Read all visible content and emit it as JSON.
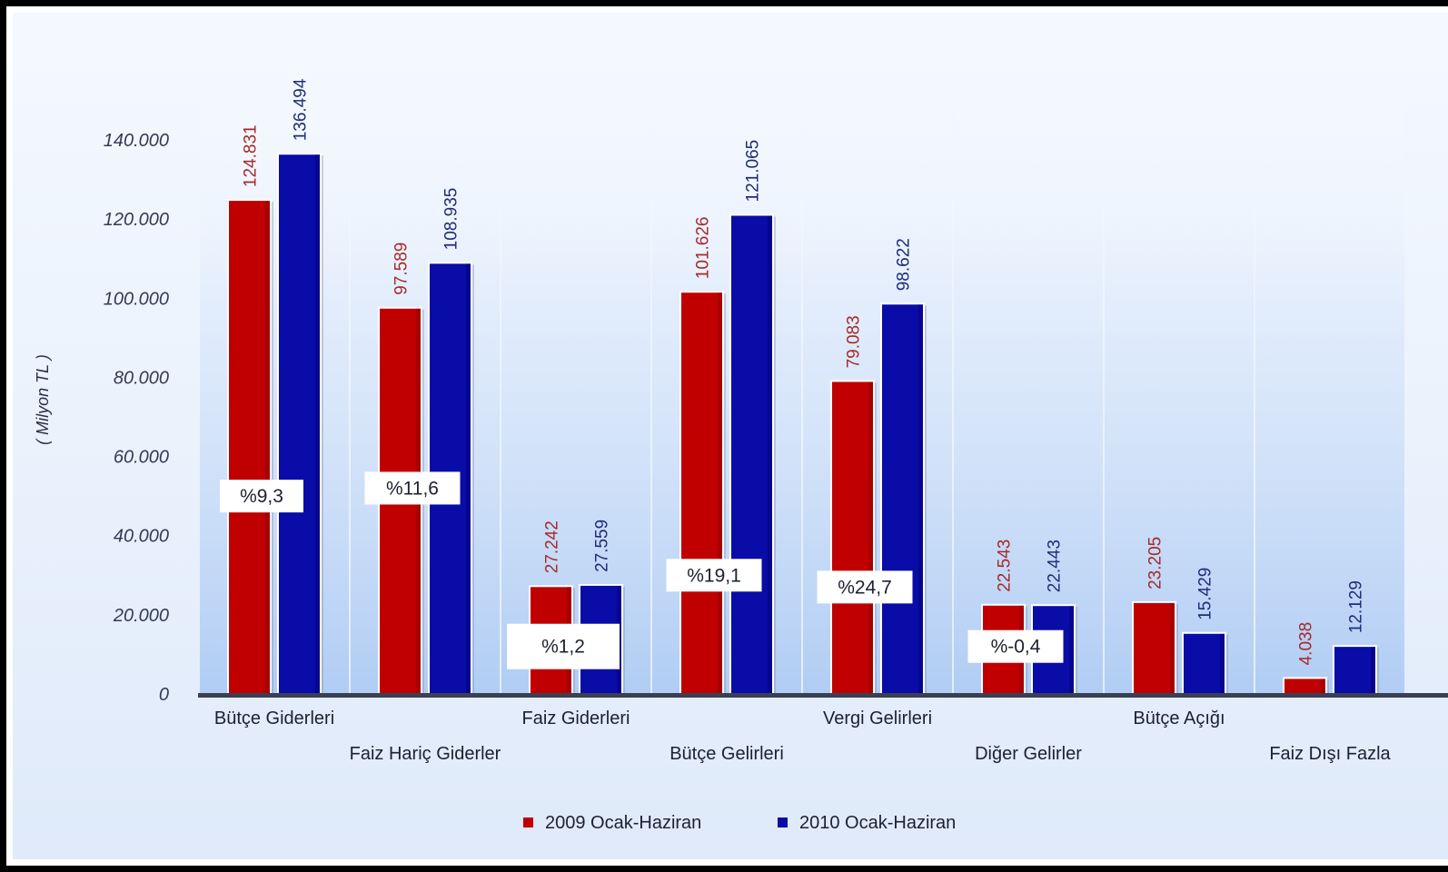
{
  "chart_data": {
    "type": "bar",
    "ylabel": "( Milyon TL )",
    "ylim": [
      0,
      140000
    ],
    "yticks": [
      "0",
      "20.000",
      "40.000",
      "60.000",
      "80.000",
      "100.000",
      "120.000",
      "140.000"
    ],
    "ytick_values": [
      0,
      20000,
      40000,
      60000,
      80000,
      100000,
      120000,
      140000
    ],
    "categories": [
      "Bütçe Giderleri",
      "Faiz Hariç Giderler",
      "Faiz Giderleri",
      "Bütçe Gelirleri",
      "Vergi Gelirleri",
      "Diğer Gelirler",
      "Bütçe Açığı",
      "Faiz Dışı Fazla"
    ],
    "series": [
      {
        "name": "2009 Ocak-Haziran",
        "color": "#c00000",
        "values": [
          124831,
          97589,
          27242,
          101626,
          79083,
          22543,
          23205,
          4038
        ],
        "labels": [
          "124.831",
          "97.589",
          "27.242",
          "101.626",
          "79.083",
          "22.543",
          "23.205",
          "4.038"
        ]
      },
      {
        "name": "2010 Ocak-Haziran",
        "color": "#0a0ca8",
        "values": [
          136494,
          108935,
          27559,
          121065,
          98622,
          22443,
          15429,
          12129
        ],
        "labels": [
          "136.494",
          "108.935",
          "27.559",
          "121.065",
          "98.622",
          "22.443",
          "15.429",
          "12.129"
        ]
      }
    ],
    "change_labels": [
      "%9,3",
      "%11,6",
      "%1,2",
      "%19,1",
      "%24,7",
      "%-0,4",
      null,
      null
    ],
    "change_label_levels": [
      50000,
      52000,
      12000,
      30000,
      27000,
      12000,
      null,
      null
    ],
    "grid": false,
    "legend_position": "bottom"
  }
}
